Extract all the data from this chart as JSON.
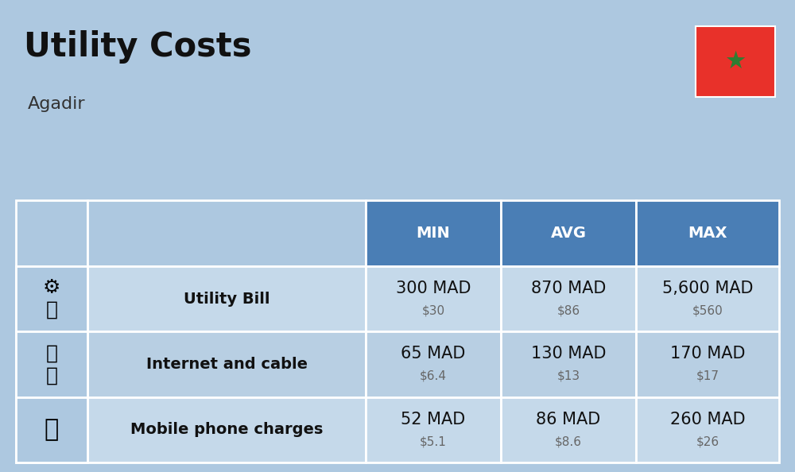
{
  "title": "Utility Costs",
  "subtitle": "Agadir",
  "background_color": "#adc8e0",
  "header_bg_color": "#4a7eb5",
  "header_text_color": "#ffffff",
  "row_colors": [
    "#c5d9ea",
    "#b8cfe3"
  ],
  "icon_col_color": "#adc8e0",
  "headers": [
    "",
    "",
    "MIN",
    "AVG",
    "MAX"
  ],
  "rows": [
    {
      "label": "Utility Bill",
      "min_mad": "300 MAD",
      "min_usd": "$30",
      "avg_mad": "870 MAD",
      "avg_usd": "$86",
      "max_mad": "5,600 MAD",
      "max_usd": "$560"
    },
    {
      "label": "Internet and cable",
      "min_mad": "65 MAD",
      "min_usd": "$6.4",
      "avg_mad": "130 MAD",
      "avg_usd": "$13",
      "max_mad": "170 MAD",
      "max_usd": "$17"
    },
    {
      "label": "Mobile phone charges",
      "min_mad": "52 MAD",
      "min_usd": "$5.1",
      "avg_mad": "86 MAD",
      "avg_usd": "$8.6",
      "max_mad": "260 MAD",
      "max_usd": "$26"
    }
  ],
  "flag_color": "#e8312a",
  "flag_star_color": "#2e7d32",
  "mad_fontsize": 15,
  "usd_fontsize": 11,
  "usd_color": "#666666",
  "label_fontsize": 14,
  "header_fontsize": 14,
  "title_fontsize": 30,
  "subtitle_fontsize": 16
}
